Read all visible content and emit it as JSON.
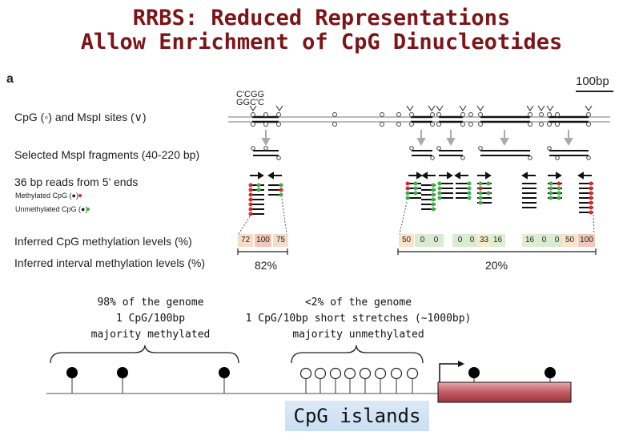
{
  "title": {
    "line1": "RRBS: Reduced Representations",
    "line2": "Allow Enrichment of CpG Dinucleotides"
  },
  "panel_label": "a",
  "scale_bar": "100bp",
  "site_label": {
    "top": "C'CGG",
    "bottom": "GGC'C"
  },
  "rows": {
    "cpg_sites": "CpG (◦) and MspI sites (∨)",
    "fragments": "Selected MspI fragments (40-220 bp)",
    "reads": "36 bp reads from 5’ ends",
    "methylated": "Methylated CpG (●)",
    "unmethylated": "Unmethylated CpG (●)",
    "cpg_levels": "Inferred CpG methylation levels (%)",
    "interval_levels": "Inferred interval methylation levels (%)"
  },
  "left_levels": [
    "72",
    "100",
    "75"
  ],
  "right_levels": [
    "50",
    "0",
    "0",
    "0",
    "0",
    "33",
    "16",
    "16",
    "0",
    "0",
    "50",
    "100"
  ],
  "interval_left": "82%",
  "interval_right": "20%",
  "colors": {
    "title": "#7d1518",
    "methylated": "#d62a2a",
    "unmethylated": "#3fae49",
    "gene_box": "#c25a63"
  },
  "genome": {
    "left_text": [
      "98% of the genome",
      "1 CpG/100bp",
      "majority methylated"
    ],
    "right_text": [
      "<2% of the genome",
      "1 CpG/10bp short stretches (~1000bp)",
      "majority unmethylated"
    ],
    "islands_label": "CpG islands"
  }
}
